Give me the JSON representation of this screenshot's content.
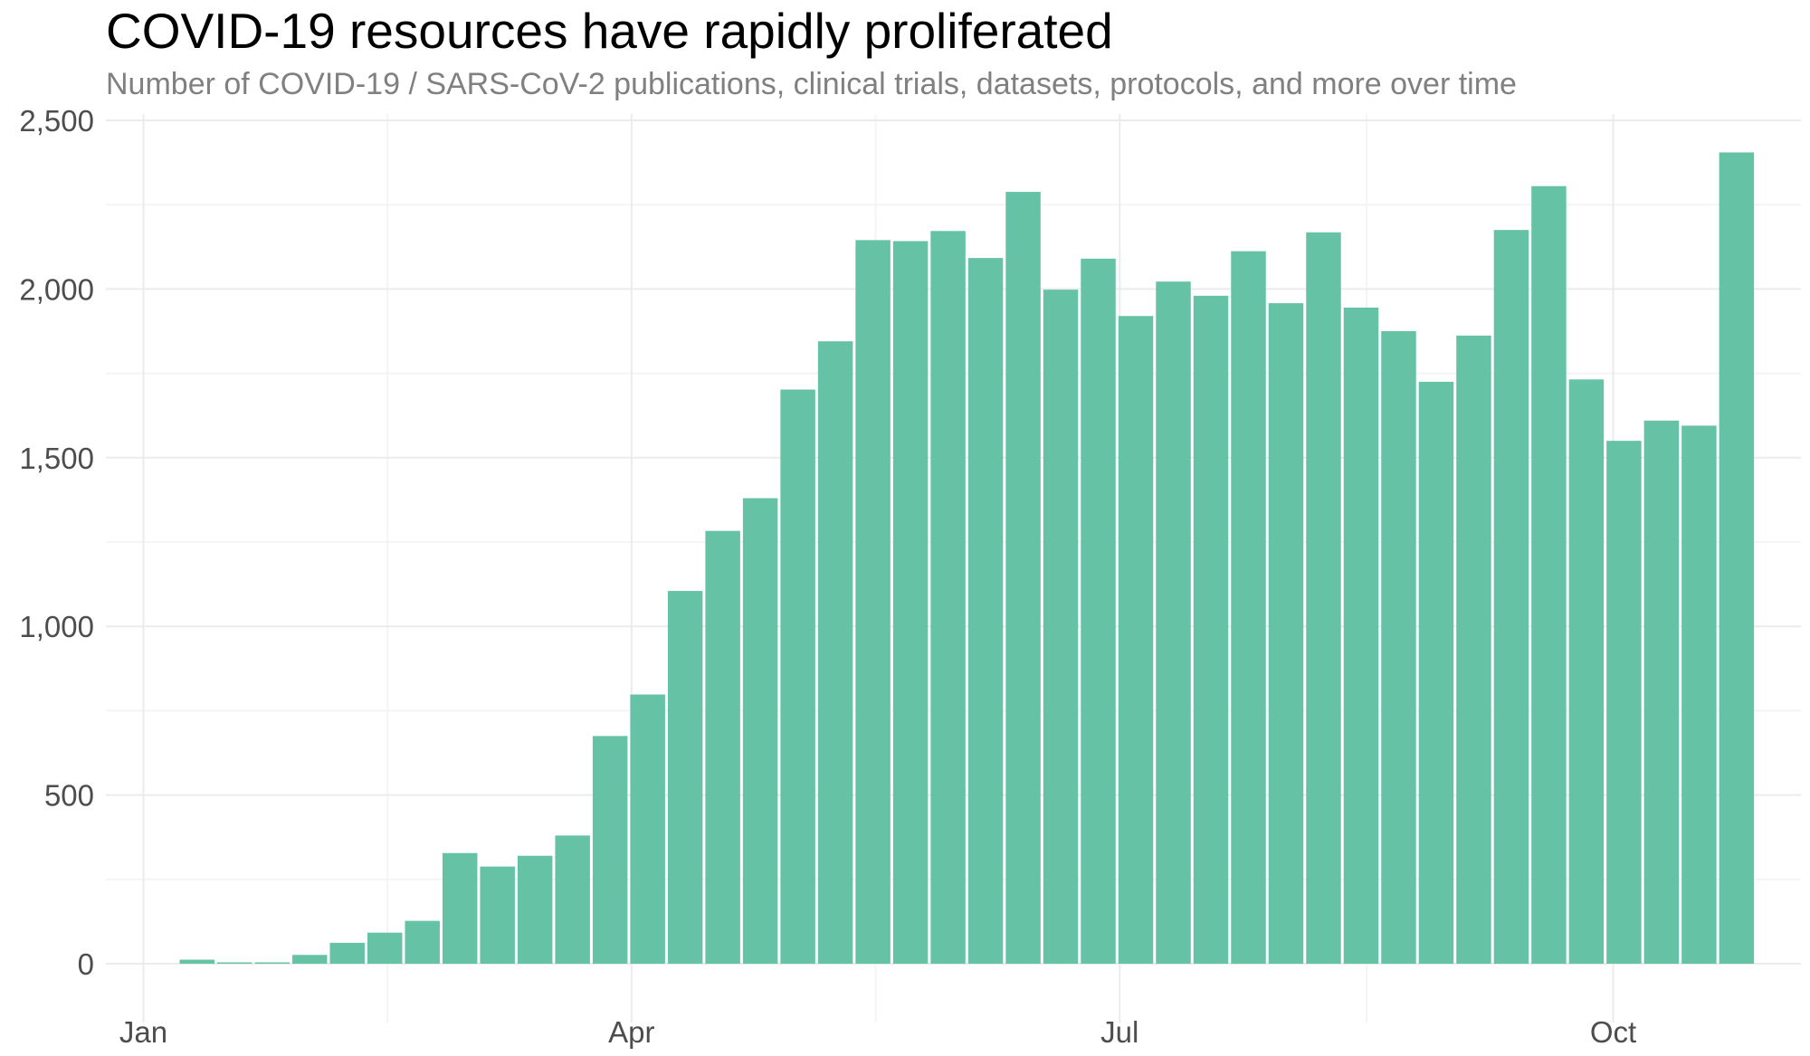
{
  "colors": {
    "bar": "#66c2a5",
    "grid_major": "#ebebeb",
    "grid_minor": "#f4f4f4",
    "title": "#000000",
    "subtitle": "#808080",
    "tick_text": "#4d4d4d"
  },
  "chart_data": {
    "type": "bar",
    "title": "COVID-19 resources have rapidly proliferated",
    "subtitle": "Number of COVID-19 / SARS-CoV-2 publications, clinical trials, datasets, protocols, and more over time",
    "xlabel": "",
    "ylabel": "",
    "x_axis": {
      "type": "date",
      "range": [
        "2019-12-25",
        "2020-11-05"
      ],
      "ticks": [
        {
          "label": "Jan",
          "date": "2020-01-01"
        },
        {
          "label": "Apr",
          "date": "2020-04-01"
        },
        {
          "label": "Jul",
          "date": "2020-07-01"
        },
        {
          "label": "Oct",
          "date": "2020-10-01"
        }
      ]
    },
    "y_axis": {
      "ylim": [
        0,
        2500
      ],
      "ticks": [
        {
          "label": "0",
          "value": 0
        },
        {
          "label": "500",
          "value": 500
        },
        {
          "label": "1,000",
          "value": 1000
        },
        {
          "label": "1,500",
          "value": 1500
        },
        {
          "label": "2,000",
          "value": 2000
        },
        {
          "label": "2,500",
          "value": 2500
        }
      ]
    },
    "grid": true,
    "legend": "none",
    "bar_interval": "weekly",
    "x": [
      "2020-01-11",
      "2020-01-18",
      "2020-01-25",
      "2020-02-01",
      "2020-02-08",
      "2020-02-15",
      "2020-02-22",
      "2020-02-29",
      "2020-03-07",
      "2020-03-14",
      "2020-03-21",
      "2020-03-28",
      "2020-04-04",
      "2020-04-11",
      "2020-04-18",
      "2020-04-25",
      "2020-05-02",
      "2020-05-09",
      "2020-05-16",
      "2020-05-23",
      "2020-05-30",
      "2020-06-06",
      "2020-06-13",
      "2020-06-20",
      "2020-06-27",
      "2020-07-04",
      "2020-07-11",
      "2020-07-18",
      "2020-07-25",
      "2020-08-01",
      "2020-08-08",
      "2020-08-15",
      "2020-08-22",
      "2020-08-29",
      "2020-09-05",
      "2020-09-12",
      "2020-09-19",
      "2020-09-26",
      "2020-10-03",
      "2020-10-10",
      "2020-10-17",
      "2020-10-24"
    ],
    "values": [
      12,
      4,
      4,
      26,
      62,
      92,
      127,
      328,
      288,
      320,
      380,
      675,
      798,
      1105,
      1283,
      1380,
      1702,
      1845,
      2145,
      2142,
      2172,
      2092,
      2288,
      1998,
      2090,
      1920,
      2022,
      1980,
      2112,
      1958,
      2168,
      1945,
      1875,
      1725,
      1862,
      2175,
      2305,
      1732,
      1550,
      1610,
      1595,
      2405
    ]
  }
}
